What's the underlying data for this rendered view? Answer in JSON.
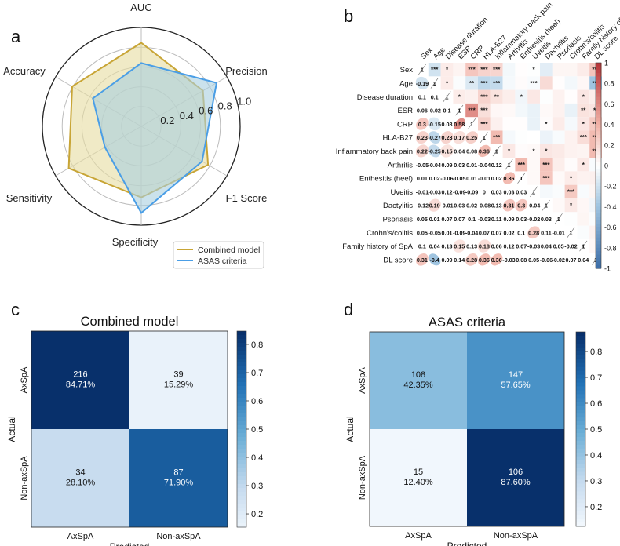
{
  "panel_labels": {
    "a": "a",
    "b": "b",
    "c": "c",
    "d": "d"
  },
  "chart_data": [
    {
      "type": "radar",
      "axes": [
        "AUC",
        "Precision",
        "F1 Score",
        "Specificity",
        "Sensitivity",
        "Accuracy"
      ],
      "r_ticks": [
        "0.2",
        "0.4",
        "0.6",
        "0.8",
        "1.0"
      ],
      "r_range": [
        0,
        1.0
      ],
      "series": [
        {
          "name": "Combined model",
          "color": "#c8a536",
          "fill": "#e6dca0",
          "values": [
            0.845,
            0.72,
            0.78,
            0.72,
            0.847,
            0.806
          ]
        },
        {
          "name": "ASAS criteria",
          "color": "#4a9ee6",
          "fill": "#a9cfe0",
          "values": [
            0.64,
            0.88,
            0.71,
            0.876,
            0.424,
            0.565
          ]
        }
      ],
      "legend_position": "bottom-right"
    },
    {
      "type": "heatmap",
      "variables": [
        "Sex",
        "Age",
        "Disease duration",
        "ESR",
        "CRP",
        "HLA-B27",
        "Inflammatory back pain",
        "Arthritis",
        "Enthesitis (heel)",
        "Uveitis",
        "Dactylitis",
        "Psoriasis",
        "Crohn's/colitis",
        "Family history of SpA",
        "DL score"
      ],
      "lower_labels": [
        [
          "1"
        ],
        [
          "-0.19",
          "1"
        ],
        [
          "0.1",
          "0.1",
          "1"
        ],
        [
          "0.06",
          "-0.02",
          "0.1",
          "1"
        ],
        [
          "0.3",
          "-0.15",
          "0.08",
          "0.58",
          "1"
        ],
        [
          "0.23",
          "-0.27",
          "0.23",
          "0.17",
          "0.25",
          "1"
        ],
        [
          "0.22",
          "-0.25",
          "0.15",
          "0.04",
          "0.08",
          "0.36",
          "1"
        ],
        [
          "-0.05",
          "-0.04",
          "0.09",
          "0.03",
          "0.01",
          "-0.04",
          "0.12",
          "1"
        ],
        [
          "0.01",
          "0.02",
          "-0.06",
          "-0.05",
          "0.01",
          "-0.01",
          "0.02",
          "0.36",
          "1"
        ],
        [
          "-0.01",
          "-0.03",
          "0.12",
          "-0.09",
          "-0.09",
          "0",
          "0.03",
          "0.03",
          "0.03",
          "1"
        ],
        [
          "-0.12",
          "0.19",
          "-0.01",
          "0.03",
          "0.02",
          "-0.08",
          "0.13",
          "0.31",
          "0.3",
          "-0.04",
          "1"
        ],
        [
          "0.05",
          "0.01",
          "0.07",
          "0.07",
          "0.1",
          "-0.03",
          "0.11",
          "0.09",
          "0.03",
          "-0.02",
          "0.03",
          "1"
        ],
        [
          "0.05",
          "-0.05",
          "0.01",
          "-0.09",
          "-0.04",
          "0.07",
          "0.07",
          "0.02",
          "0.1",
          "0.28",
          "0.11",
          "-0.01",
          "1"
        ],
        [
          "0.1",
          "0.04",
          "0.13",
          "0.15",
          "0.13",
          "0.18",
          "0.06",
          "0.12",
          "0.07",
          "-0.03",
          "0.04",
          "0.05",
          "-0.02",
          "1"
        ],
        [
          "0.31",
          "-0.4",
          "0.09",
          "0.14",
          "0.28",
          "0.36",
          "0.36",
          "-0.03",
          "0.08",
          "0.05",
          "-0.06",
          "-0.02",
          "0.07",
          "0.04",
          "1"
        ]
      ],
      "significance": [
        [
          0,
          1,
          "***"
        ],
        [
          0,
          2,
          "*"
        ],
        [
          0,
          4,
          "***"
        ],
        [
          0,
          5,
          "***"
        ],
        [
          0,
          6,
          "***"
        ],
        [
          0,
          9,
          "*"
        ],
        [
          0,
          14,
          "***"
        ],
        [
          1,
          2,
          "*"
        ],
        [
          1,
          4,
          "**"
        ],
        [
          1,
          5,
          "***"
        ],
        [
          1,
          6,
          "***"
        ],
        [
          1,
          9,
          "***"
        ],
        [
          1,
          14,
          "***"
        ],
        [
          2,
          3,
          "*"
        ],
        [
          2,
          5,
          "***"
        ],
        [
          2,
          6,
          "**"
        ],
        [
          2,
          8,
          "*"
        ],
        [
          2,
          13,
          "*"
        ],
        [
          3,
          4,
          "***"
        ],
        [
          3,
          5,
          "***"
        ],
        [
          3,
          13,
          "**"
        ],
        [
          3,
          14,
          "**"
        ],
        [
          4,
          5,
          "***"
        ],
        [
          4,
          10,
          "*"
        ],
        [
          4,
          13,
          "*"
        ],
        [
          4,
          14,
          "***"
        ],
        [
          5,
          6,
          "***"
        ],
        [
          5,
          13,
          "***"
        ],
        [
          5,
          14,
          "***"
        ],
        [
          6,
          7,
          "*"
        ],
        [
          6,
          9,
          "*"
        ],
        [
          6,
          10,
          "*"
        ],
        [
          6,
          14,
          "***"
        ],
        [
          7,
          8,
          "***"
        ],
        [
          7,
          10,
          "***"
        ],
        [
          7,
          13,
          "*"
        ],
        [
          8,
          10,
          "***"
        ],
        [
          8,
          12,
          "*"
        ],
        [
          9,
          12,
          "***"
        ],
        [
          10,
          12,
          "*"
        ]
      ],
      "colorbar_ticks": [
        "1",
        "0.8",
        "0.6",
        "0.4",
        "0.2",
        "0",
        "-0.2",
        "-0.4",
        "-0.6",
        "-0.8",
        "-1"
      ],
      "colorbar_range": [
        -1,
        1
      ]
    },
    {
      "type": "heatmap",
      "title": "Combined model",
      "xlabel": "Predicted",
      "ylabel": "Actual",
      "x_categories": [
        "AxSpA",
        "Non-axSpA"
      ],
      "y_categories": [
        "AxSpA",
        "Non-axSpA"
      ],
      "cells": [
        [
          {
            "count": "216",
            "pct": "84.71%",
            "value": 0.8471
          },
          {
            "count": "39",
            "pct": "15.29%",
            "value": 0.1529
          }
        ],
        [
          {
            "count": "34",
            "pct": "28.10%",
            "value": 0.281
          },
          {
            "count": "87",
            "pct": "71.90%",
            "value": 0.719
          }
        ]
      ],
      "colorbar_ticks": [
        "0.8",
        "0.7",
        "0.6",
        "0.5",
        "0.4",
        "0.3",
        "0.2"
      ],
      "colorbar_range": [
        0.1529,
        0.8471
      ]
    },
    {
      "type": "heatmap",
      "title": "ASAS criteria",
      "xlabel": "Predicted",
      "ylabel": "Actual",
      "x_categories": [
        "AxSpA",
        "Non-axSpA"
      ],
      "y_categories": [
        "AxSpA",
        "Non-axSpA"
      ],
      "cells": [
        [
          {
            "count": "108",
            "pct": "42.35%",
            "value": 0.4235
          },
          {
            "count": "147",
            "pct": "57.65%",
            "value": 0.5765
          }
        ],
        [
          {
            "count": "15",
            "pct": "12.40%",
            "value": 0.124
          },
          {
            "count": "106",
            "pct": "87.60%",
            "value": 0.876
          }
        ]
      ],
      "colorbar_ticks": [
        "0.8",
        "0.7",
        "0.6",
        "0.5",
        "0.4",
        "0.3",
        "0.2"
      ],
      "colorbar_range": [
        0.124,
        0.876
      ]
    }
  ]
}
